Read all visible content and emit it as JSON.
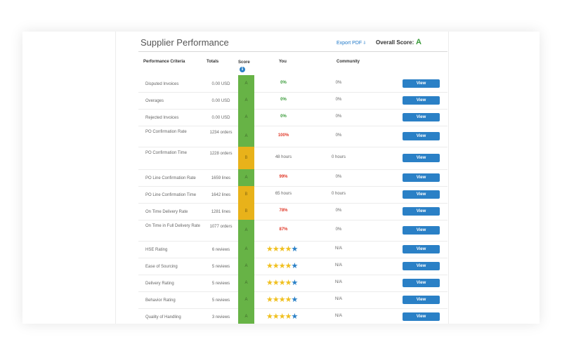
{
  "header": {
    "title": "Supplier Performance",
    "export_label": "Export PDF",
    "overall_label": "Overall Score:",
    "overall_value": "A"
  },
  "columns": {
    "criteria": "Performance Criteria",
    "totals": "Totals",
    "score": "Score",
    "you": "You",
    "community": "Community"
  },
  "colors": {
    "grade_a": "#67b346",
    "grade_b": "#e8b21a",
    "good": "#3a9b3a",
    "bad": "#e03a2a",
    "button": "#2a80c6",
    "star": "#f0c020"
  },
  "rows": [
    {
      "criteria": "Disputed Invoices",
      "totals": "0.00 USD",
      "score": "A",
      "you": "0%",
      "you_status": "good",
      "community": "0%",
      "action": "View"
    },
    {
      "criteria": "Overages",
      "totals": "0.00 USD",
      "score": "A",
      "you": "0%",
      "you_status": "good",
      "community": "0%",
      "action": "View"
    },
    {
      "criteria": "Rejected Invoices",
      "totals": "0.00 USD",
      "score": "A",
      "you": "0%",
      "you_status": "good",
      "community": "0%",
      "action": "View"
    },
    {
      "criteria": "PO Confirmation Rate",
      "totals": "1234 orders",
      "score": "A",
      "you": "100%",
      "you_status": "bad",
      "community": "0%",
      "action": "View"
    },
    {
      "criteria": "PO Confirmation Time",
      "totals": "1228 orders",
      "score": "B",
      "you": "48 hours",
      "you_status": "neutral",
      "community": "0 hours",
      "action": "View"
    },
    {
      "criteria": "PO Line Confirmation Rate",
      "totals": "1659 lines",
      "score": "A",
      "you": "99%",
      "you_status": "bad",
      "community": "0%",
      "action": "View"
    },
    {
      "criteria": "PO Line Confirmation Time",
      "totals": "1642 lines",
      "score": "B",
      "you": "65 hours",
      "you_status": "neutral",
      "community": "0 hours",
      "action": "View"
    },
    {
      "criteria": "On Time Delivery Rate",
      "totals": "1281 lines",
      "score": "B",
      "you": "78%",
      "you_status": "bad",
      "community": "0%",
      "action": "View"
    },
    {
      "criteria": "On Time in Full Delivery Rate",
      "totals": "1077 orders",
      "score": "A",
      "you": "87%",
      "you_status": "bad",
      "community": "0%",
      "action": "View"
    },
    {
      "criteria": "HSE Rating",
      "totals": "6 reviews",
      "score": "A",
      "rating": 4,
      "community": "N/A",
      "action": "View"
    },
    {
      "criteria": "Ease of Sourcing",
      "totals": "5 reviews",
      "score": "A",
      "rating": 4,
      "community": "N/A",
      "action": "View"
    },
    {
      "criteria": "Delivery Rating",
      "totals": "5 reviews",
      "score": "A",
      "rating": 4,
      "community": "N/A",
      "action": "View"
    },
    {
      "criteria": "Behavior Rating",
      "totals": "5 reviews",
      "score": "A",
      "rating": 4,
      "community": "N/A",
      "action": "View"
    },
    {
      "criteria": "Quality of Handling",
      "totals": "3 reviews",
      "score": "A",
      "rating": 4,
      "community": "N/A",
      "action": "View"
    }
  ]
}
